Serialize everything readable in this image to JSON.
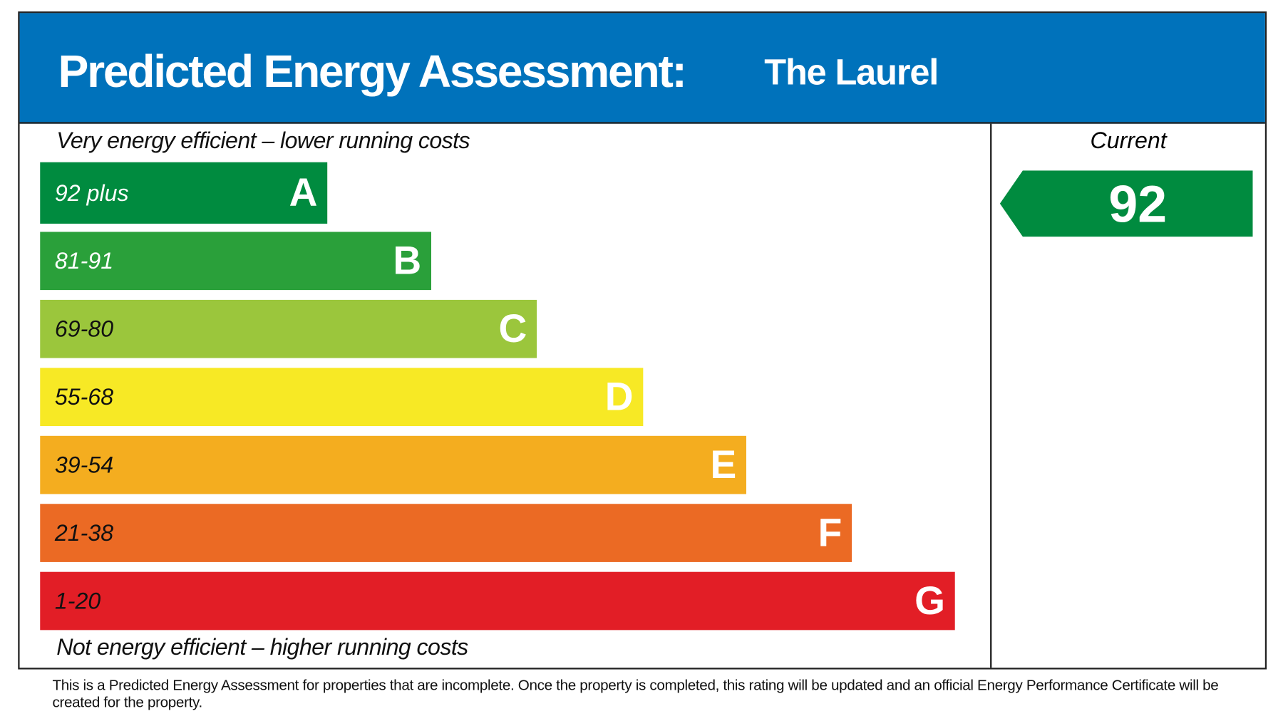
{
  "header": {
    "title": "Predicted Energy Assessment:",
    "property": "The Laurel"
  },
  "top_caption": "Very energy efficient – lower running costs",
  "bottom_caption": "Not energy efficient – higher running costs",
  "bands": [
    {
      "range": "92 plus",
      "letter": "A",
      "color": "#008b3f",
      "text_color": "#ffffff"
    },
    {
      "range": "81-91",
      "letter": "B",
      "color": "#2aa03a",
      "text_color": "#ffffff"
    },
    {
      "range": "69-80",
      "letter": "C",
      "color": "#9bc63c",
      "text_color": "#111111"
    },
    {
      "range": "55-68",
      "letter": "D",
      "color": "#f7e925",
      "text_color": "#111111"
    },
    {
      "range": "39-54",
      "letter": "E",
      "color": "#f4ad1f",
      "text_color": "#111111"
    },
    {
      "range": "21-38",
      "letter": "F",
      "color": "#eb6a24",
      "text_color": "#111111"
    },
    {
      "range": "1-20",
      "letter": "G",
      "color": "#e21e26",
      "text_color": "#111111"
    }
  ],
  "current": {
    "label": "Current",
    "value": "92",
    "band": "A"
  },
  "footer": "This is a Predicted Energy Assessment for properties that are incomplete. Once the property is completed, this rating will be updated and an official Energy Performance Certificate will be created for the property."
}
